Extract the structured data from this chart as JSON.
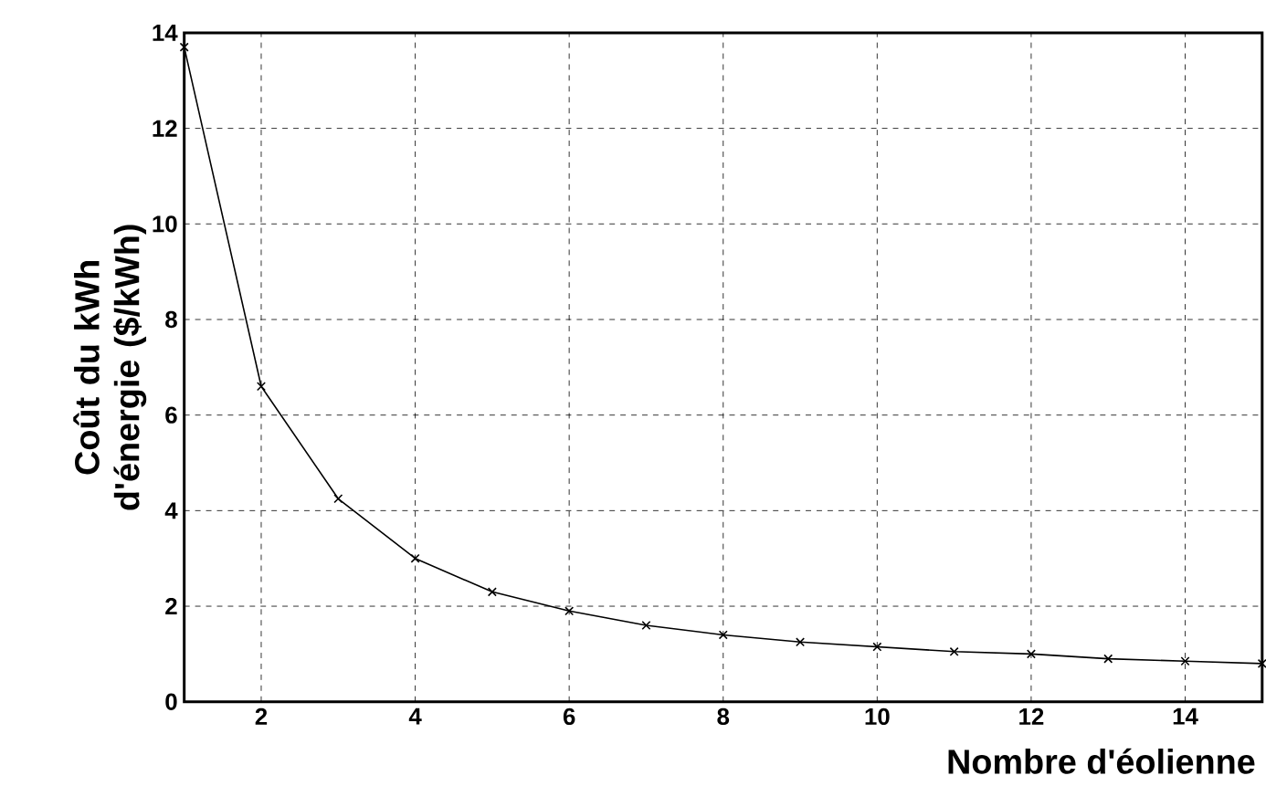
{
  "chart_data": {
    "type": "line",
    "xlabel": "Nombre d'éolienne",
    "ylabel": "Coût du kWh d'énergie ($/kWh)",
    "x": [
      1,
      2,
      3,
      4,
      5,
      6,
      7,
      8,
      9,
      10,
      11,
      12,
      13,
      14,
      15
    ],
    "series": [
      {
        "color": "#000000",
        "values": [
          13.7,
          6.6,
          4.25,
          3.0,
          2.3,
          1.9,
          1.6,
          1.4,
          1.25,
          1.15,
          1.05,
          1.0,
          0.9,
          0.85,
          0.8
        ]
      }
    ],
    "xlim": [
      1,
      15
    ],
    "ylim": [
      0,
      14
    ],
    "xticks": [
      2,
      4,
      6,
      8,
      10,
      12,
      14
    ],
    "yticks": [
      0,
      2,
      4,
      6,
      8,
      10,
      12,
      14
    ],
    "grid": true,
    "marker": "cross",
    "line_style": "solid"
  }
}
